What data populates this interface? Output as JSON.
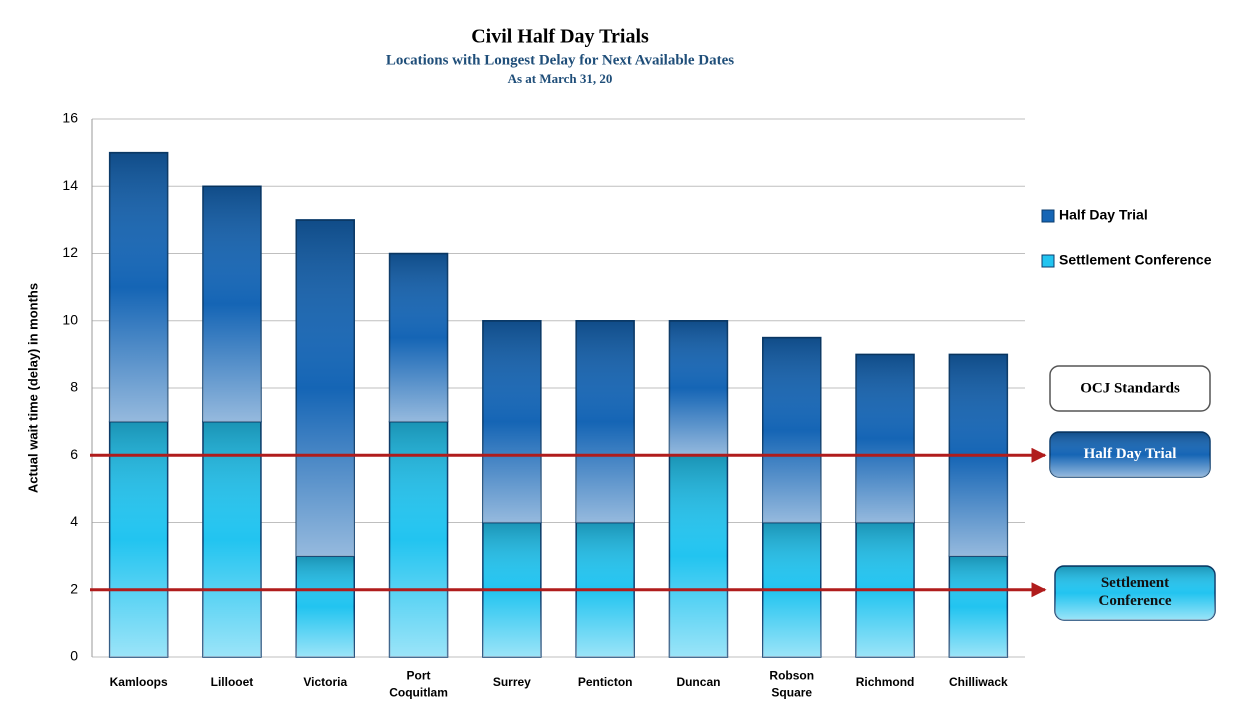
{
  "chart_data": {
    "type": "stacked_bar",
    "title": "Civil Half Day Trials",
    "subtitle": "Locations with Longest Delay for Next Available Dates",
    "subtitle2": "As at March 31, 20",
    "y_label": "Actual wait time (delay) in months",
    "categories": [
      "Kamloops",
      "Lillooet",
      "Victoria",
      "Port Coquitlam",
      "Surrey",
      "Penticton",
      "Duncan",
      "Robson Square",
      "Richmond",
      "Chilliwack"
    ],
    "series": [
      {
        "name": "Settlement Conference",
        "color": "#22c4f0",
        "values": [
          7,
          7,
          3,
          7,
          4,
          4,
          6,
          4,
          4,
          3
        ]
      },
      {
        "name": "Half Day Trial",
        "color": "#1565b5",
        "values": [
          8,
          7,
          10,
          5,
          6,
          6,
          4,
          5.5,
          5,
          6
        ]
      }
    ],
    "ylim": [
      0,
      16
    ],
    "yticks": [
      0,
      2,
      4,
      6,
      8,
      10,
      12,
      14,
      16
    ],
    "grid": true,
    "reference_title": "OCJ Standards",
    "reference_lines": [
      {
        "label": "Half Day Trial",
        "value": 6,
        "color": "#1565b5"
      },
      {
        "label": "Settlement Conference",
        "value": 2,
        "color": "#22c4f0"
      }
    ],
    "line_color": "#b01c1c"
  }
}
